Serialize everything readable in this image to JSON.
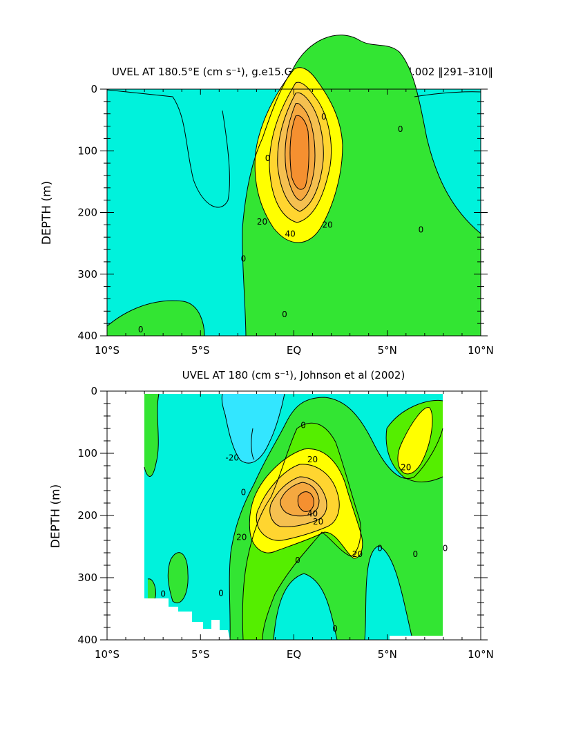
{
  "colors": {
    "cyan": "#00f2dc",
    "cyan_light": "#00f6ee",
    "blue": "#33e6ff",
    "green": "#33e533",
    "green_bright": "#55ee00",
    "yellow": "#ffff00",
    "yellow_orange": "#ffd530",
    "orange1": "#f5c050",
    "orange2": "#f5a840",
    "orange3": "#f59030",
    "line": "#000000"
  },
  "chart_data": [
    {
      "type": "contour",
      "title": "UVEL AT 180.5°E (cm s⁻¹), g.e15.GIAF.T62_gx1v6.e15_ctrl.002 ‖291–310‖",
      "xlabel": "",
      "ylabel": "DEPTH (m)",
      "x_ticks": [
        "10°S",
        "5°S",
        "EQ",
        "5°N",
        "10°N"
      ],
      "y_ticks": [
        "0",
        "100",
        "200",
        "300",
        "400"
      ],
      "xlim": [
        -10,
        10
      ],
      "ylim": [
        400,
        0
      ],
      "contour_interval": 10,
      "fill_levels": [
        "<0",
        "0–10",
        "10–20",
        "20–30",
        "30–40",
        "40–50",
        "50–60",
        ">60"
      ],
      "core": {
        "lat": 0.0,
        "depth": 155,
        "max_speed": 60
      },
      "contour_labels": [
        {
          "text": "0",
          "lat": 1.6,
          "depth": 45
        },
        {
          "text": "0",
          "lat": 5.7,
          "depth": 65
        },
        {
          "text": "0",
          "lat": -1.4,
          "depth": 112
        },
        {
          "text": "0",
          "lat": 6.8,
          "depth": 228
        },
        {
          "text": "0",
          "lat": -2.7,
          "depth": 275
        },
        {
          "text": "0",
          "lat": -0.5,
          "depth": 365
        },
        {
          "text": "0",
          "lat": -8.2,
          "depth": 390
        },
        {
          "text": "20",
          "lat": -1.7,
          "depth": 215
        },
        {
          "text": "20",
          "lat": 1.8,
          "depth": 220
        },
        {
          "text": "40",
          "lat": -0.2,
          "depth": 235
        }
      ]
    },
    {
      "type": "contour",
      "title": "UVEL AT 180 (cm s⁻¹), Johnson et al (2002)",
      "xlabel": "",
      "ylabel": "DEPTH (m)",
      "x_ticks": [
        "10°S",
        "5°S",
        "EQ",
        "5°N",
        "10°N"
      ],
      "y_ticks": [
        "0",
        "100",
        "200",
        "300",
        "400"
      ],
      "xlim": [
        -10,
        10
      ],
      "ylim": [
        400,
        0
      ],
      "data_lat_range": [
        -8,
        8
      ],
      "contour_interval": 10,
      "fill_levels": [
        "<-10",
        "-10–0",
        "0–10",
        "10–20",
        "20–30",
        "30–40",
        "40–50",
        ">50"
      ],
      "core": {
        "lat": 0.5,
        "depth": 165,
        "max_speed": 50
      },
      "contour_labels": [
        {
          "text": "0",
          "lat": 0.5,
          "depth": 55
        },
        {
          "text": "-20",
          "lat": -3.3,
          "depth": 107
        },
        {
          "text": "20",
          "lat": 1.0,
          "depth": 110
        },
        {
          "text": "0",
          "lat": -2.7,
          "depth": 163
        },
        {
          "text": "20",
          "lat": 6.0,
          "depth": 123
        },
        {
          "text": "40",
          "lat": 1.0,
          "depth": 197
        },
        {
          "text": "20",
          "lat": 1.3,
          "depth": 210
        },
        {
          "text": "20",
          "lat": -2.8,
          "depth": 235
        },
        {
          "text": "20",
          "lat": 3.4,
          "depth": 262
        },
        {
          "text": "0",
          "lat": 4.6,
          "depth": 253
        },
        {
          "text": "0",
          "lat": 6.5,
          "depth": 262
        },
        {
          "text": "0",
          "lat": 8.1,
          "depth": 253
        },
        {
          "text": "0",
          "lat": 0.2,
          "depth": 272
        },
        {
          "text": "0",
          "lat": -3.9,
          "depth": 325
        },
        {
          "text": "0",
          "lat": -7.0,
          "depth": 326
        },
        {
          "text": "0",
          "lat": 2.2,
          "depth": 382
        }
      ]
    }
  ]
}
